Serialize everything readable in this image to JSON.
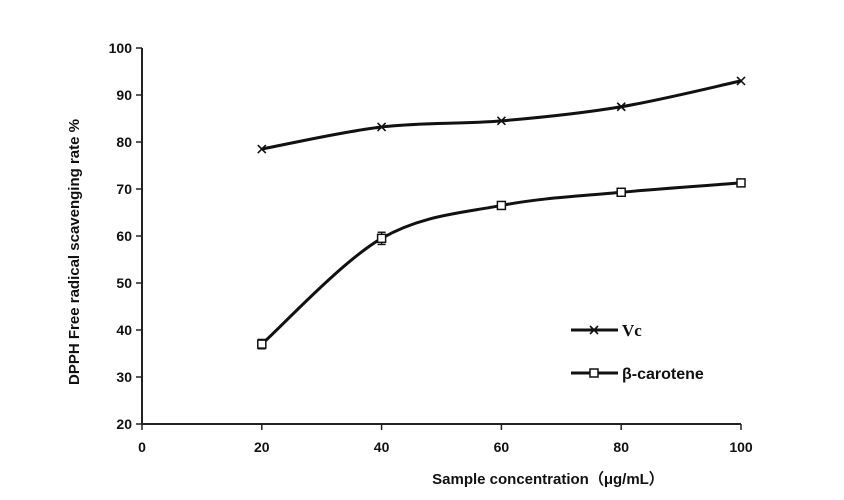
{
  "chart_data": {
    "type": "line",
    "title": "",
    "xlabel": "Sample concentration（μg/mL）",
    "ylabel": "DPPH Free radical scavenging rate %",
    "x_ticks": [
      "0",
      "20",
      "40",
      "60",
      "80",
      "100"
    ],
    "y_ticks": [
      "20",
      "30",
      "40",
      "50",
      "60",
      "70",
      "80",
      "90",
      "100"
    ],
    "xlim": [
      0,
      100
    ],
    "ylim": [
      20,
      100
    ],
    "grid": false,
    "legend_position": "bottom-right",
    "x": [
      20,
      40,
      60,
      80,
      100
    ],
    "series": [
      {
        "name": "Vc",
        "marker": "x",
        "values": [
          78.5,
          83.2,
          84.5,
          87.5,
          93.0
        ]
      },
      {
        "name": "β-carotene",
        "marker": "square",
        "values": [
          37.0,
          59.5,
          66.5,
          69.3,
          71.3
        ],
        "error": [
          1.0,
          1.3,
          0.6,
          0.5,
          0.5
        ]
      }
    ]
  }
}
